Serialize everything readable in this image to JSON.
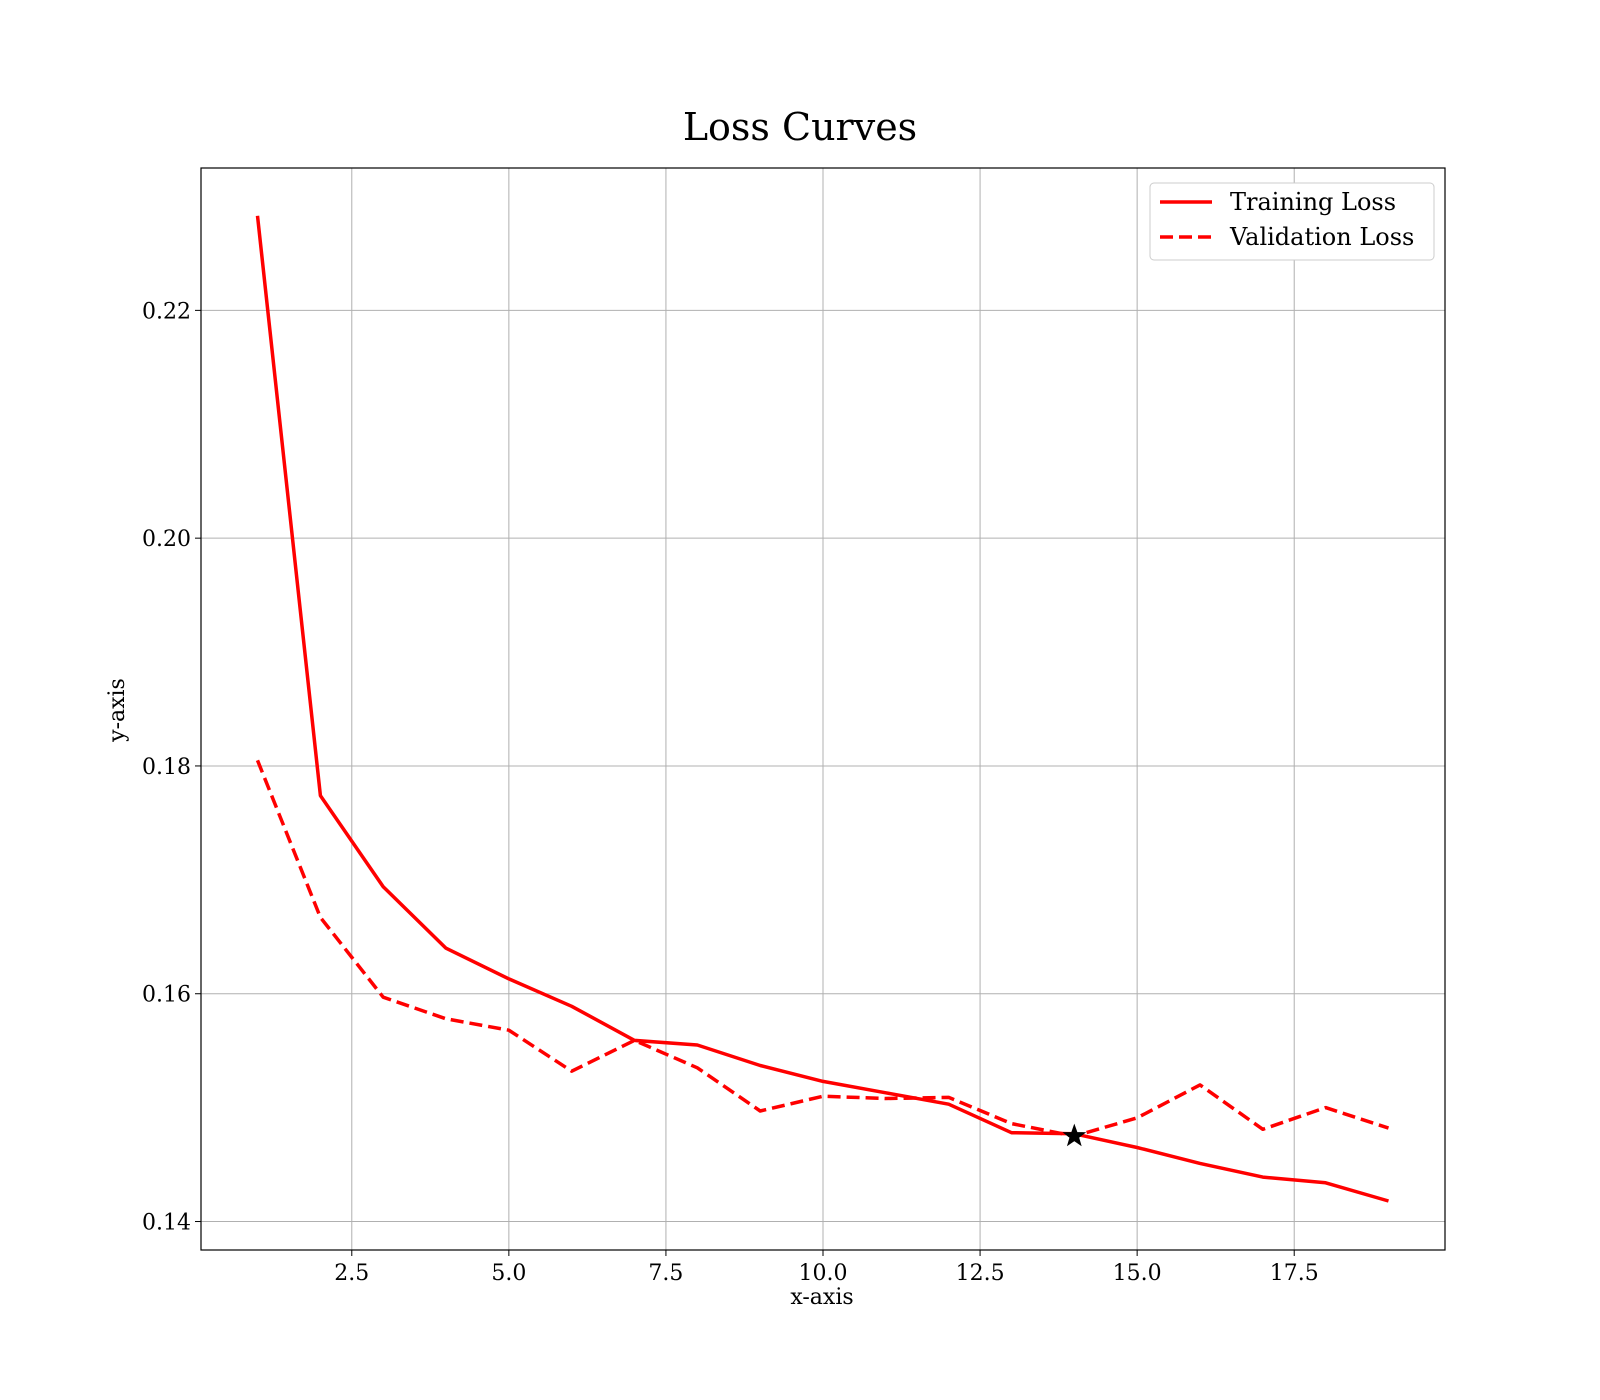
{
  "chart_data": {
    "type": "line",
    "title": "Loss Curves",
    "xlabel": "x-axis",
    "ylabel": "y-axis",
    "xlim": [
      0.1,
      19.9
    ],
    "ylim": [
      0.1375,
      0.2325
    ],
    "xticks": [
      2.5,
      5.0,
      7.5,
      10.0,
      12.5,
      15.0,
      17.5
    ],
    "xtick_labels": [
      "2.5",
      "5.0",
      "7.5",
      "10.0",
      "12.5",
      "15.0",
      "17.5"
    ],
    "yticks": [
      0.14,
      0.16,
      0.18,
      0.2,
      0.22
    ],
    "ytick_labels": [
      "0.14",
      "0.16",
      "0.18",
      "0.20",
      "0.22"
    ],
    "grid": true,
    "legend_position": "top-right",
    "x": [
      1,
      2,
      3,
      4,
      5,
      6,
      7,
      8,
      9,
      10,
      11,
      12,
      13,
      14,
      15,
      16,
      17,
      18,
      19
    ],
    "series": [
      {
        "name": "Training Loss",
        "style": "solid",
        "color": "#ff0000",
        "values": [
          0.2283,
          0.1774,
          0.1694,
          0.164,
          0.1613,
          0.1589,
          0.1559,
          0.1555,
          0.1537,
          0.1523,
          0.1513,
          0.1503,
          0.1478,
          0.1477,
          0.1465,
          0.1451,
          0.1439,
          0.1434,
          0.1418
        ]
      },
      {
        "name": "Validation Loss",
        "style": "dashed",
        "color": "#ff0000",
        "values": [
          0.1805,
          0.1667,
          0.1597,
          0.1578,
          0.1568,
          0.1532,
          0.1559,
          0.1535,
          0.1497,
          0.151,
          0.1508,
          0.1509,
          0.1486,
          0.1475,
          0.1491,
          0.152,
          0.1481,
          0.15,
          0.1482
        ]
      }
    ],
    "markers": [
      {
        "x": 14,
        "y": 0.1475,
        "shape": "star",
        "color": "#000000"
      }
    ]
  }
}
